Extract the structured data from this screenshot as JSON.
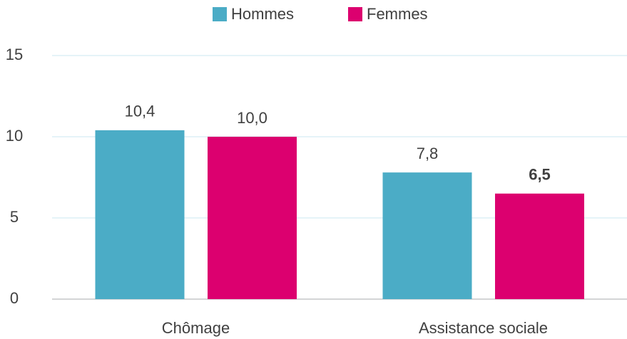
{
  "chart_data": {
    "type": "bar",
    "categories": [
      "Chômage",
      "Assistance sociale"
    ],
    "series": [
      {
        "name": "Hommes",
        "color": "#4bacc6",
        "values": [
          10.4,
          7.8
        ],
        "value_labels": [
          "10,4",
          "7,8"
        ]
      },
      {
        "name": "Femmes",
        "color": "#dc006f",
        "values": [
          10.0,
          6.5
        ],
        "value_labels": [
          "10,0",
          "6,5"
        ]
      }
    ],
    "ylim": [
      0,
      15
    ],
    "yticks": [
      0,
      5,
      10,
      15
    ],
    "grid": true,
    "legend": "top"
  }
}
